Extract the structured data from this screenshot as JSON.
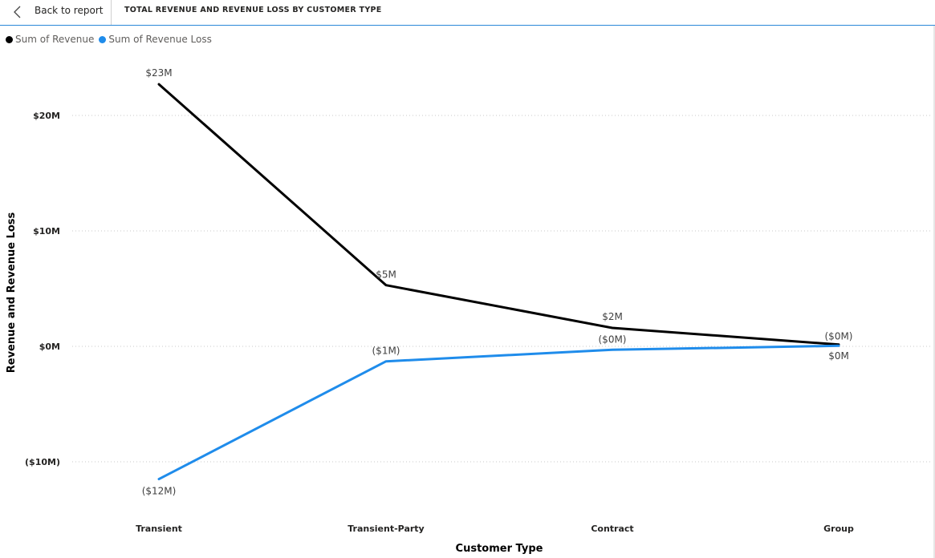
{
  "header": {
    "back_label": "Back to report",
    "title": "TOTAL REVENUE AND REVENUE LOSS BY CUSTOMER TYPE"
  },
  "chart_data": {
    "type": "line",
    "categories": [
      "Transient",
      "Transient-Party",
      "Contract",
      "Group"
    ],
    "series": [
      {
        "name": "Sum of Revenue",
        "color": "#000000",
        "values": [
          22.7,
          5.3,
          1.6,
          0.15
        ],
        "labels": [
          "$23M",
          "$5M",
          "$2M",
          "$0M"
        ]
      },
      {
        "name": "Sum of Revenue Loss",
        "color": "#1f8ceb",
        "values": [
          -11.5,
          -1.3,
          -0.3,
          0.05
        ],
        "labels": [
          "($12M)",
          "($1M)",
          "($0M)",
          "($0M)"
        ]
      }
    ],
    "y_ticks": [
      20,
      10,
      0,
      -10
    ],
    "y_tick_labels": [
      "$20M",
      "$10M",
      "$0M",
      "($10M)"
    ],
    "ylim": [
      -14.3,
      25.3
    ],
    "xlabel": "Customer Type",
    "ylabel": "Revenue and Revenue Loss",
    "grid": true,
    "legend_position": "top-left"
  }
}
